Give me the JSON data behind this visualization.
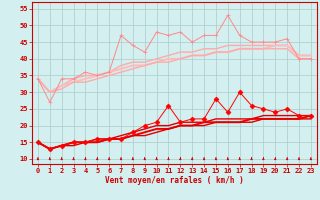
{
  "x": [
    0,
    1,
    2,
    3,
    4,
    5,
    6,
    7,
    8,
    9,
    10,
    11,
    12,
    13,
    14,
    15,
    16,
    17,
    18,
    19,
    20,
    21,
    22,
    23
  ],
  "series": [
    {
      "name": "max_rafales",
      "color": "#ff8888",
      "marker": "+",
      "linewidth": 0.7,
      "markersize": 3.5,
      "y": [
        34,
        27,
        34,
        34,
        36,
        35,
        36,
        47,
        44,
        42,
        48,
        47,
        48,
        45,
        47,
        47,
        53,
        47,
        45,
        45,
        45,
        46,
        40,
        40
      ]
    },
    {
      "name": "moy_rafales_upper",
      "color": "#ffaaaa",
      "marker": null,
      "linewidth": 1.0,
      "markersize": 0,
      "y": [
        34,
        30,
        32,
        34,
        35,
        35,
        36,
        38,
        39,
        39,
        40,
        41,
        42,
        42,
        43,
        43,
        44,
        44,
        44,
        44,
        44,
        44,
        41,
        41
      ]
    },
    {
      "name": "trend_rafales",
      "color": "#ffbbbb",
      "marker": null,
      "linewidth": 1.4,
      "markersize": 0,
      "y": [
        34,
        30,
        32,
        33,
        34,
        35,
        36,
        37,
        38,
        38,
        39,
        40,
        40,
        41,
        41,
        42,
        42,
        43,
        43,
        43,
        44,
        44,
        41,
        41
      ]
    },
    {
      "name": "moy_rafales_lower",
      "color": "#ffaaaa",
      "marker": null,
      "linewidth": 1.0,
      "markersize": 0,
      "y": [
        34,
        30,
        31,
        33,
        33,
        34,
        35,
        36,
        37,
        38,
        39,
        39,
        40,
        41,
        41,
        42,
        42,
        43,
        43,
        43,
        43,
        43,
        40,
        40
      ]
    },
    {
      "name": "max_vent",
      "color": "#ff0000",
      "marker": "D",
      "linewidth": 0.7,
      "markersize": 2.5,
      "y": [
        15,
        13,
        14,
        15,
        15,
        16,
        16,
        16,
        18,
        20,
        21,
        26,
        21,
        22,
        22,
        28,
        24,
        30,
        26,
        25,
        24,
        25,
        23,
        23
      ]
    },
    {
      "name": "moy_vent_upper",
      "color": "#dd0000",
      "marker": null,
      "linewidth": 1.0,
      "markersize": 0,
      "y": [
        15,
        13,
        14,
        15,
        15,
        16,
        16,
        17,
        18,
        19,
        20,
        20,
        21,
        21,
        21,
        22,
        22,
        22,
        22,
        23,
        23,
        23,
        23,
        23
      ]
    },
    {
      "name": "trend_vent",
      "color": "#ee0000",
      "marker": null,
      "linewidth": 1.4,
      "markersize": 0,
      "y": [
        15,
        13,
        14,
        15,
        15,
        15,
        16,
        16,
        17,
        18,
        19,
        19,
        20,
        20,
        21,
        21,
        21,
        21,
        22,
        22,
        22,
        22,
        22,
        23
      ]
    },
    {
      "name": "moy_vent_lower",
      "color": "#dd0000",
      "marker": null,
      "linewidth": 1.0,
      "markersize": 0,
      "y": [
        15,
        13,
        14,
        14,
        15,
        15,
        16,
        16,
        17,
        17,
        18,
        19,
        20,
        20,
        20,
        21,
        21,
        21,
        21,
        22,
        22,
        22,
        22,
        22
      ]
    }
  ],
  "xlabel": "Vent moyen/en rafales ( km/h )",
  "xlabel_color": "#cc0000",
  "xlabel_fontsize": 5.5,
  "xticks": [
    0,
    1,
    2,
    3,
    4,
    5,
    6,
    7,
    8,
    9,
    10,
    11,
    12,
    13,
    14,
    15,
    16,
    17,
    18,
    19,
    20,
    21,
    22,
    23
  ],
  "yticks": [
    10,
    15,
    20,
    25,
    30,
    35,
    40,
    45,
    50,
    55
  ],
  "ylim": [
    8.5,
    57
  ],
  "xlim": [
    -0.5,
    23.5
  ],
  "grid_color": "#aacccc",
  "bg_color": "#d4efef",
  "tick_color": "#cc0000",
  "tick_fontsize": 5,
  "arrow_color": "#cc0000"
}
